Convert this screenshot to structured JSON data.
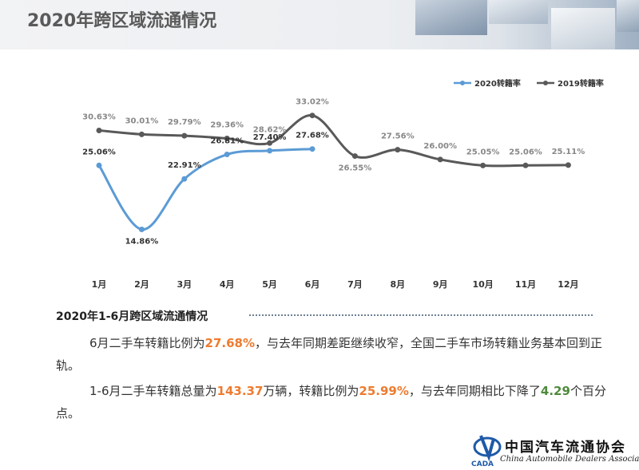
{
  "header": {
    "title": "2020年跨区域流通情况"
  },
  "chart_data": {
    "type": "line",
    "categories": [
      "1月",
      "2月",
      "3月",
      "4月",
      "5月",
      "6月",
      "7月",
      "8月",
      "9月",
      "10月",
      "11月",
      "12月"
    ],
    "series": [
      {
        "name": "2020转籍率",
        "color": "#5b9bd5",
        "values": [
          25.06,
          14.86,
          22.91,
          26.81,
          27.4,
          27.68,
          null,
          null,
          null,
          null,
          null,
          null
        ],
        "labels": [
          "25.06%",
          "14.86%",
          "22.91%",
          "26.81%",
          "27.40%",
          "27.68%"
        ]
      },
      {
        "name": "2019转籍率",
        "color": "#595959",
        "values": [
          30.63,
          30.01,
          29.79,
          29.36,
          28.62,
          33.02,
          26.55,
          27.56,
          26.0,
          25.05,
          25.06,
          25.11
        ],
        "labels": [
          "30.63%",
          "30.01%",
          "29.79%",
          "29.36%",
          "28.62%",
          "33.02%",
          "26.55%",
          "27.56%",
          "26.00%",
          "25.05%",
          "25.06%",
          "25.11%"
        ]
      }
    ],
    "ylim": [
      12,
      34
    ],
    "grid": false,
    "legend_position": "top-right"
  },
  "section": {
    "title": "2020年1-6月跨区域流通情况"
  },
  "para1": {
    "t1": "6月二手车转籍比例为",
    "v1": "27.68%",
    "t2": "，与去年同期差距继续收窄，全国二手车市场转籍业务基本回到正轨。"
  },
  "para2": {
    "t1": "1-6月二手车转籍总量为",
    "v1": "143.37",
    "t2": "万辆，转籍比例为",
    "v2": "25.99%",
    "t3": "，与去年同期相比下降了",
    "v3": "4.29",
    "t4": "个百分点。"
  },
  "logo": {
    "cn": "中国汽车流通协会",
    "en": "China Automobile Dealers Association",
    "mark": "CADA"
  }
}
